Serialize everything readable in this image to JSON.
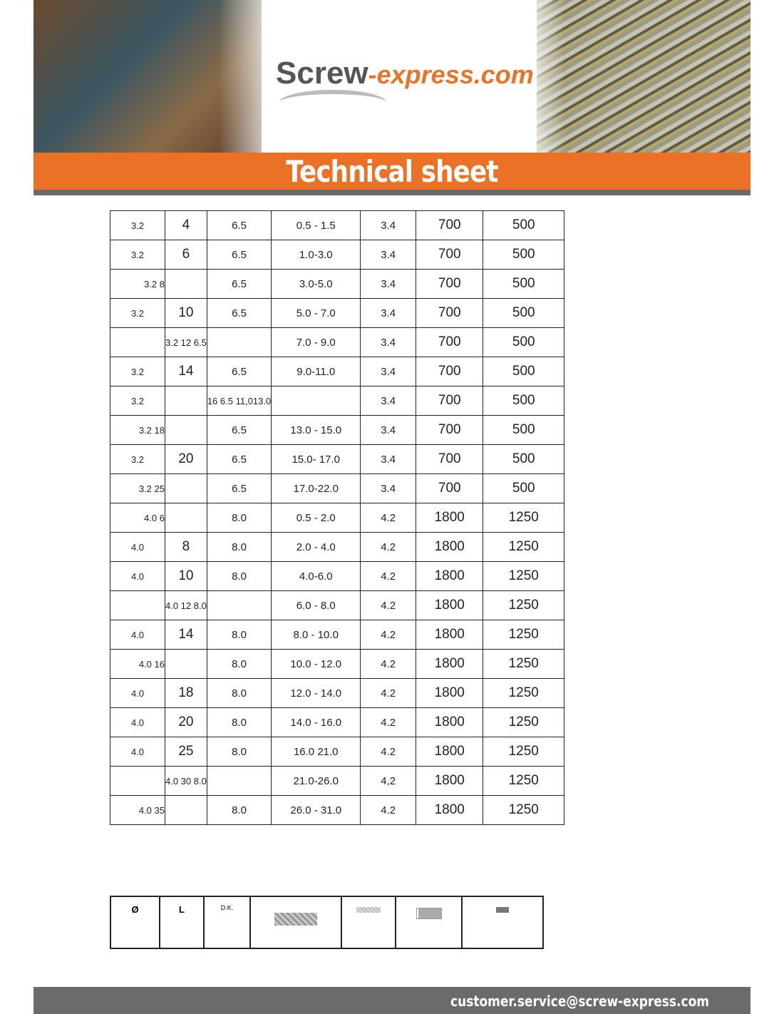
{
  "header": {
    "logo_main": "Screw",
    "logo_domain": "-express.com",
    "title": "Technical sheet"
  },
  "rows": [
    [
      "3.2",
      "4",
      "6.5",
      "0.5 - 1.5",
      "3.4",
      "700",
      "500"
    ],
    [
      "3.2",
      "6",
      "6.5",
      "1.0-3.0",
      "3.4",
      "700",
      "500"
    ],
    [
      "3.2 8",
      "",
      "6.5",
      "3.0-5.0",
      "3.4",
      "700",
      "500"
    ],
    [
      "3.2",
      "10",
      "6.5",
      "5.0 - 7.0",
      "3.4",
      "700",
      "500"
    ],
    [
      "",
      "3.2 12 6.5",
      "",
      "7.0 - 9.0",
      "3.4",
      "700",
      "500"
    ],
    [
      "3.2",
      "14",
      "6.5",
      "9.0-11.0",
      "3.4",
      "700",
      "500"
    ],
    [
      "3.2",
      "",
      "16 6.5 11,013.0",
      "",
      "3.4",
      "700",
      "500"
    ],
    [
      "3.2 18",
      "",
      "6.5",
      "13.0 - 15.0",
      "3.4",
      "700",
      "500"
    ],
    [
      "3.2",
      "20",
      "6.5",
      "15.0- 17.0",
      "3.4",
      "700",
      "500"
    ],
    [
      "3.2 25",
      "",
      "6.5",
      "17.0-22.0",
      "3.4",
      "700",
      "500"
    ],
    [
      "4.0 6",
      "",
      "8.0",
      "0.5 - 2.0",
      "4.2",
      "1800",
      "1250"
    ],
    [
      "4.0",
      "8",
      "8.0",
      "2.0 - 4.0",
      "4.2",
      "1800",
      "1250"
    ],
    [
      "4.0",
      "10",
      "8.0",
      "4.0-6.0",
      "4.2",
      "1800",
      "1250"
    ],
    [
      "",
      "4.0 12 8.0",
      "",
      "6.0 - 8.0",
      "4.2",
      "1800",
      "1250"
    ],
    [
      "4.0",
      "14",
      "8.0",
      "8.0 - 10.0",
      "4.2",
      "1800",
      "1250"
    ],
    [
      "4.0 16",
      "",
      "8.0",
      "10.0 - 12.0",
      "4.2",
      "1800",
      "1250"
    ],
    [
      "4.0",
      "18",
      "8.0",
      "12.0 - 14.0",
      "4.2",
      "1800",
      "1250"
    ],
    [
      "4.0",
      "20",
      "8.0",
      "14.0 - 16.0",
      "4.2",
      "1800",
      "1250"
    ],
    [
      "4.0",
      "25",
      "8.0",
      "16.0 21.0",
      "4.2",
      "1800",
      "1250"
    ],
    [
      "",
      "4.0 30 8.0",
      "",
      "21.0-26.0",
      "4,2",
      "1800",
      "1250"
    ],
    [
      "4.0 35",
      "",
      "8.0",
      "26.0 - 31.0",
      "4.2",
      "1800",
      "1250"
    ]
  ],
  "legend": {
    "diameter": "Ø",
    "length": "L",
    "head": "D.K.",
    "icons": [
      "clamping-range-icon",
      "hole-diameter-icon",
      "shear-force-icon",
      "tensile-force-icon"
    ]
  },
  "footer": {
    "email": "customer.service@screw-express.com"
  }
}
